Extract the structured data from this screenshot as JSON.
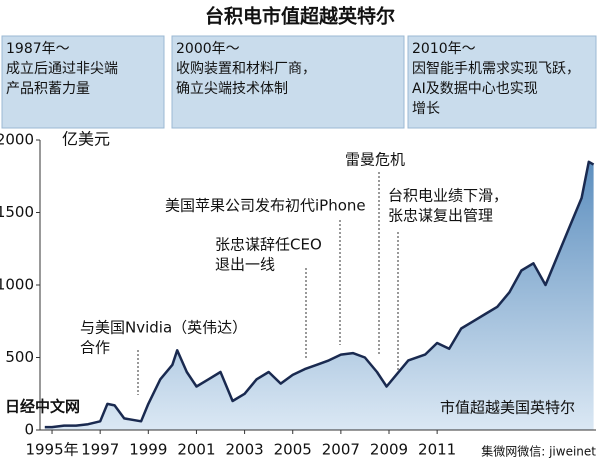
{
  "chart_data": {
    "type": "area",
    "title": "台积电市值超越英特尔",
    "y_unit": "亿美元",
    "periods": [
      {
        "title": "1987年～",
        "lines": [
          "成立后通过非尖端",
          "产品积蓄力量"
        ]
      },
      {
        "title": "2000年～",
        "lines": [
          "收购装置和材料厂商，",
          "确立尖端技术体制"
        ]
      },
      {
        "title": "2010年～",
        "lines": [
          "因智能手机需求实现飞跃，",
          "AI及数据中心也实现",
          "增长"
        ]
      }
    ],
    "annotations": [
      {
        "lines": [
          "与美国Nvidia（英伟达）",
          "合作"
        ]
      },
      {
        "lines": [
          "张忠谋辞任CEO",
          "退出一线"
        ]
      },
      {
        "lines": [
          "美国苹果公司发布初代iPhone"
        ]
      },
      {
        "lines": [
          "雷曼危机"
        ]
      },
      {
        "lines": [
          "台积电业绩下滑，",
          "张忠谋复出管理"
        ]
      },
      {
        "lines": [
          "市值超越美国英特尔"
        ]
      }
    ],
    "watermarks": [
      "日经中文网",
      "集微网微信: jiweinet"
    ],
    "color": "#1a2a50",
    "x": [
      1994.7,
      1995,
      1995.5,
      1996,
      1996.5,
      1997,
      1997.3,
      1997.6,
      1998,
      1998.7,
      1999,
      1999.5,
      2000,
      2000.2,
      2000.6,
      2001,
      2001.5,
      2002,
      2002.5,
      2003,
      2003.5,
      2004,
      2004.5,
      2005,
      2005.5,
      2006,
      2006.5,
      2007,
      2007.5,
      2008,
      2008.5,
      2008.9,
      2009.3,
      2009.8,
      2010.5,
      2011,
      2011.5,
      2012,
      2012.5,
      2013,
      2013.5,
      2014,
      2014.5,
      2015,
      2015.5,
      2016,
      2016.5,
      2017,
      2017.3,
      2017.5
    ],
    "values": [
      20,
      20,
      30,
      30,
      40,
      60,
      180,
      170,
      80,
      60,
      180,
      350,
      450,
      550,
      400,
      300,
      350,
      400,
      200,
      250,
      350,
      400,
      320,
      380,
      420,
      450,
      480,
      520,
      530,
      500,
      400,
      300,
      380,
      480,
      520,
      600,
      560,
      700,
      750,
      800,
      850,
      950,
      1100,
      1150,
      1000,
      1200,
      1400,
      1600,
      1850,
      1830
    ],
    "xlim": [
      1994.5,
      2017.6
    ],
    "xticks": [
      {
        "value": 1995,
        "label": "1995年"
      },
      1997,
      1999,
      2001,
      2003,
      2005,
      2007,
      2009,
      2011
    ],
    "xtick_labels_short": [
      "97",
      "99",
      "2001",
      "03",
      "05",
      "07",
      "09",
      "11"
    ],
    "ylim": [
      0,
      2000
    ],
    "yticks": [
      0,
      500,
      1000,
      1500,
      2000
    ]
  }
}
